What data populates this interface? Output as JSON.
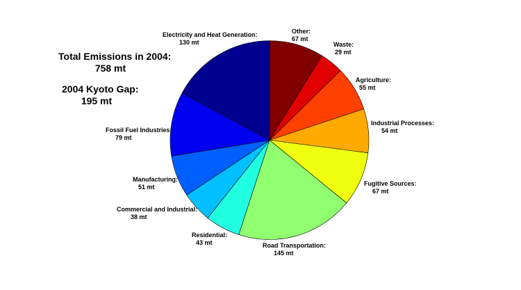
{
  "annotations": {
    "total_label": "Total Emissions in 2004:",
    "total_value": "758 mt",
    "gap_label": "2004 Kyoto Gap:",
    "gap_value": "195 mt"
  },
  "chart_data": {
    "type": "pie",
    "title": "",
    "unit": "mt",
    "start_angle": "12 o'clock",
    "direction": "clockwise",
    "total": 758,
    "kyoto_gap": 195,
    "slices": [
      {
        "name": "Other",
        "label": "Other:",
        "value": 67,
        "value_label": "67 mt",
        "color": "#800000"
      },
      {
        "name": "Waste",
        "label": "Waste:",
        "value": 29,
        "value_label": "29 mt",
        "color": "#e00000"
      },
      {
        "name": "Agriculture",
        "label": "Agriculture:",
        "value": 55,
        "value_label": "55 mt",
        "color": "#ff4000"
      },
      {
        "name": "Industrial Processes",
        "label": "Industrial Processes:",
        "value": 54,
        "value_label": "54 mt",
        "color": "#ffaa00"
      },
      {
        "name": "Fugitive Sources",
        "label": "Fugitive Sources:",
        "value": 67,
        "value_label": "67 mt",
        "color": "#f0ff10"
      },
      {
        "name": "Road Transportation",
        "label": "Road Transportation:",
        "value": 145,
        "value_label": "145 mt",
        "color": "#90ff70"
      },
      {
        "name": "Residential",
        "label": "Residential:",
        "value": 43,
        "value_label": "43 mt",
        "color": "#20ffe0"
      },
      {
        "name": "Commercial and Industrial",
        "label": "Commercial and Industrial:",
        "value": 38,
        "value_label": "38 mt",
        "color": "#00c0ff"
      },
      {
        "name": "Manufacturing",
        "label": "Manufacturing:",
        "value": 51,
        "value_label": "51 mt",
        "color": "#0060ff"
      },
      {
        "name": "Fossil Fuel Industries",
        "label": "Fossil Fuel Industries:",
        "value": 79,
        "value_label": "79 mt",
        "color": "#0000f0"
      },
      {
        "name": "Electricity and Heat Generation",
        "label": "Electricity and Heat Generation:",
        "value": 130,
        "value_label": "130 mt",
        "color": "#000090"
      }
    ]
  }
}
